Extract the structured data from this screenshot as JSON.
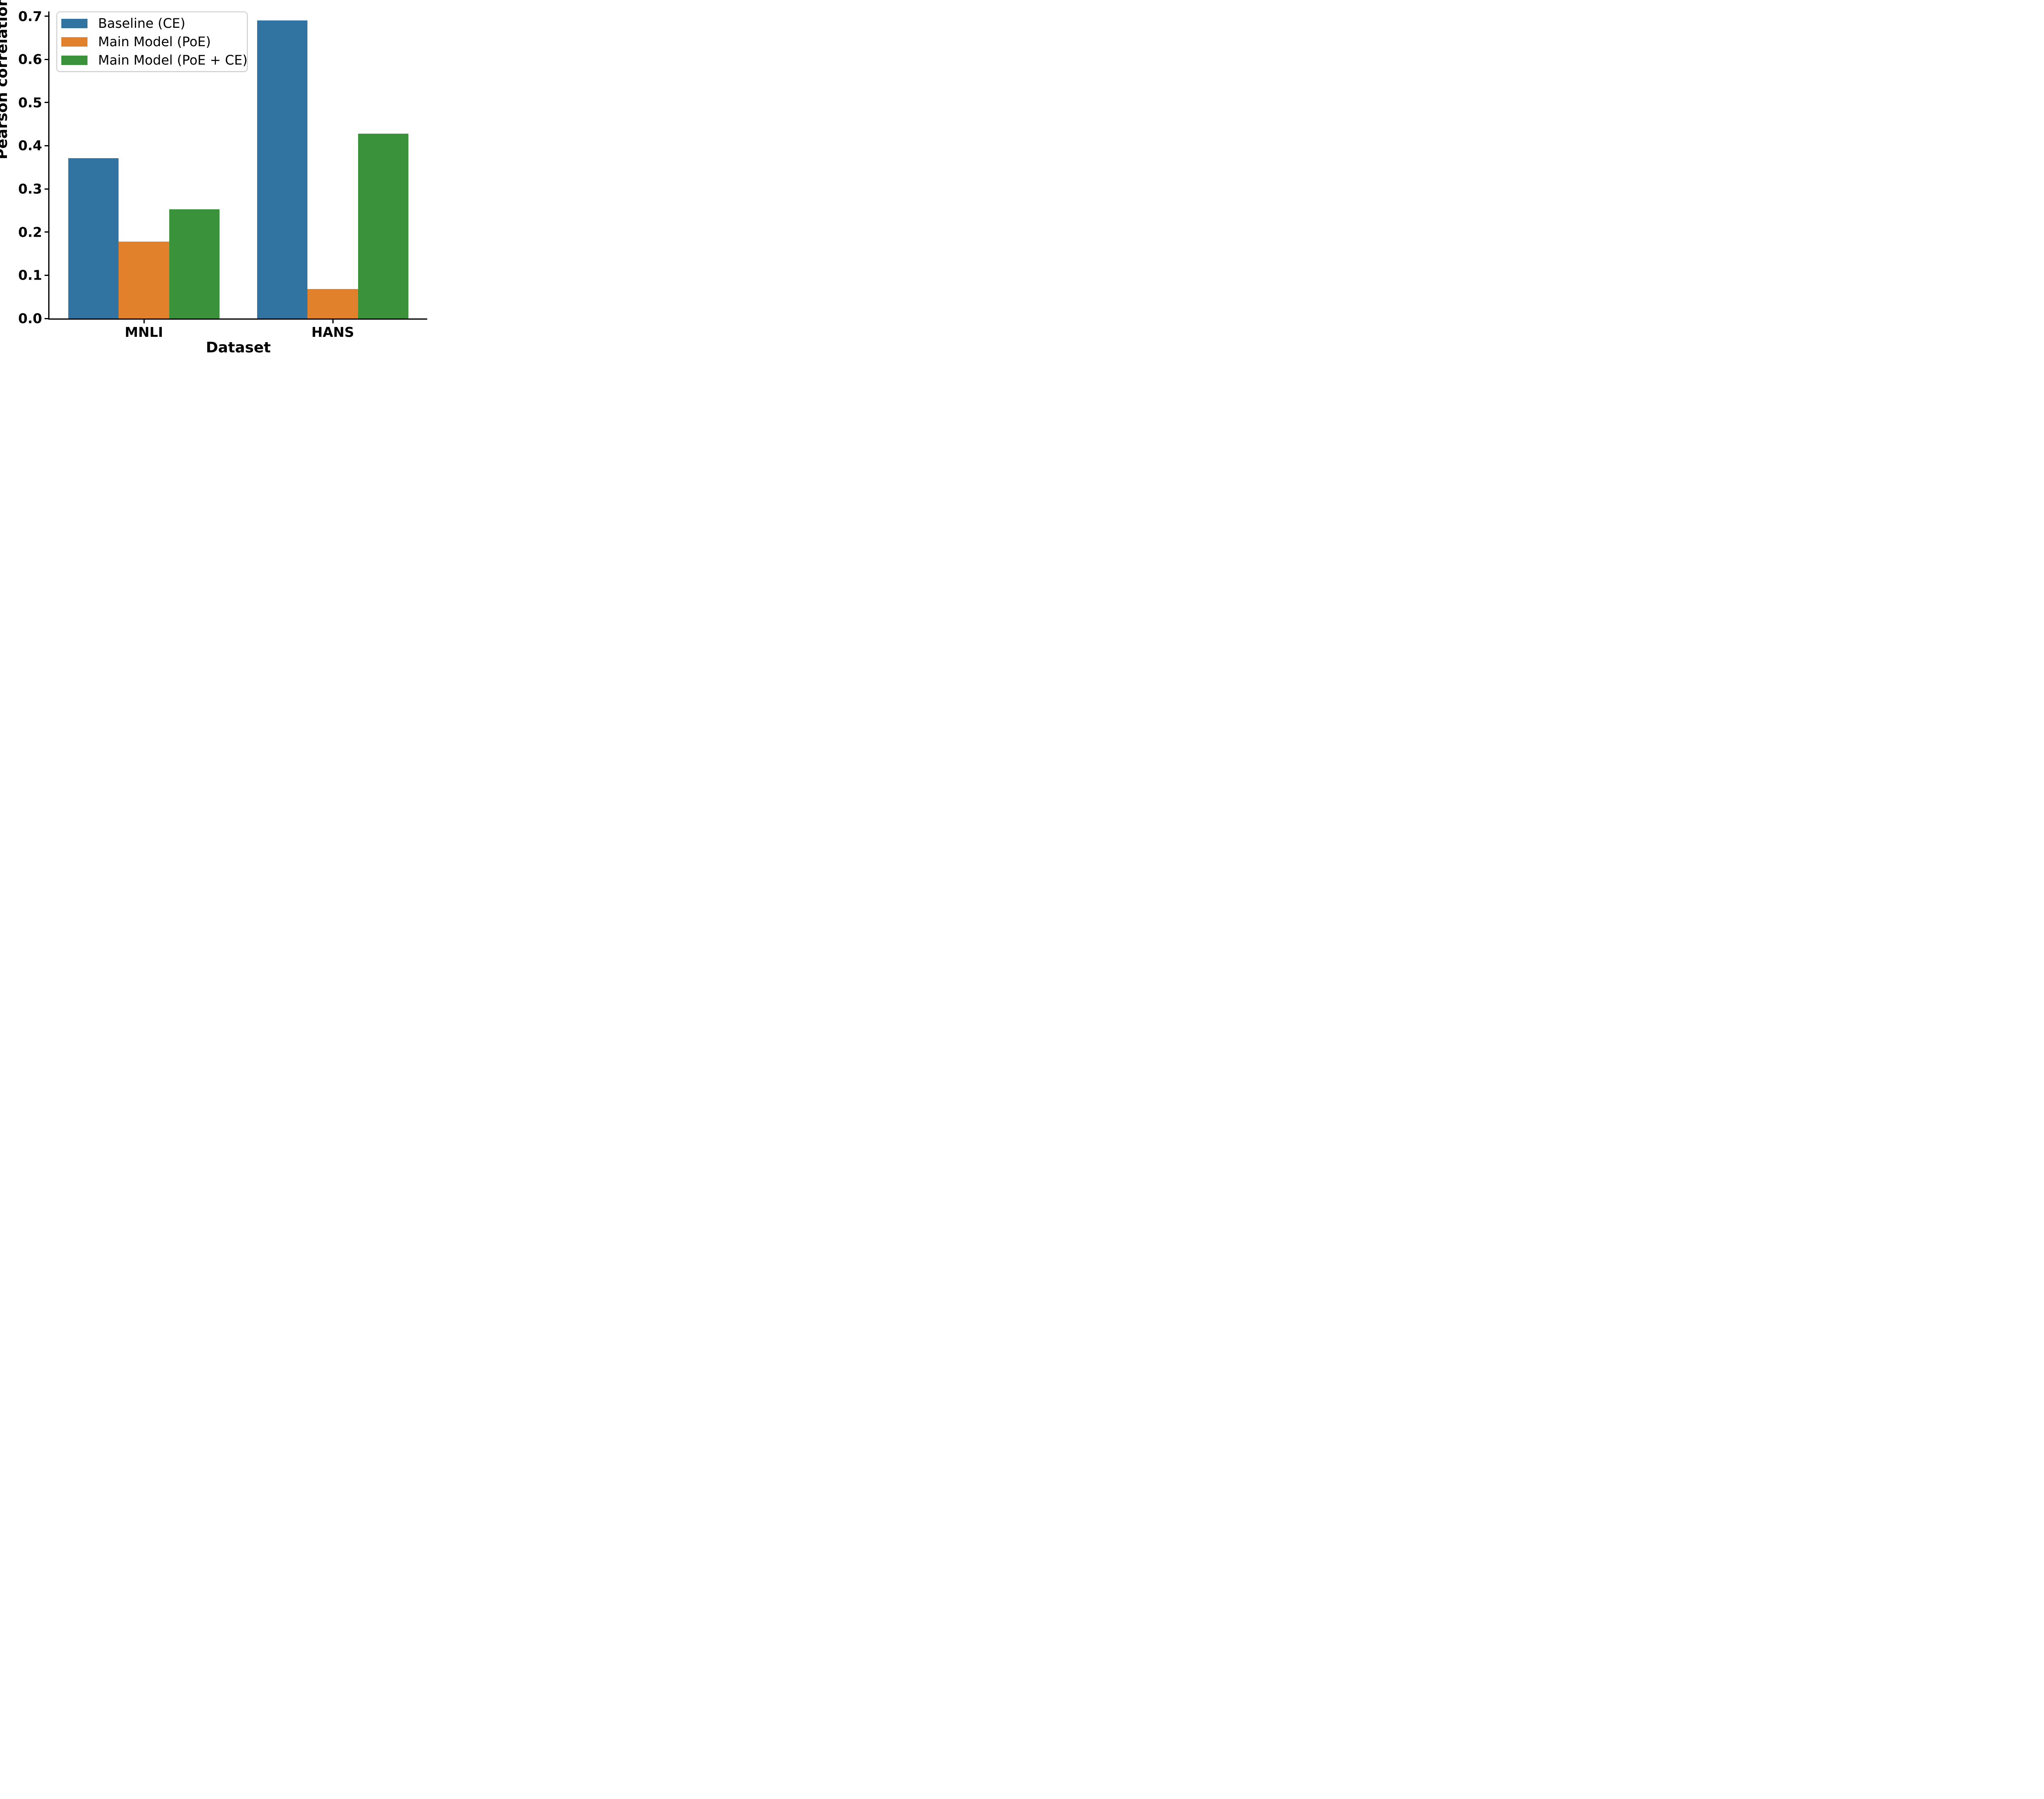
{
  "chart_data": {
    "type": "bar",
    "title": "",
    "categories": [
      "MNLI",
      "HANS"
    ],
    "series": [
      {
        "name": "Baseline (CE)",
        "color": "#3274a1",
        "values": [
          0.371,
          0.69
        ]
      },
      {
        "name": "Main Model (PoE)",
        "color": "#e1812c",
        "values": [
          0.178,
          0.068
        ]
      },
      {
        "name": "Main Model (PoE + CE)",
        "color": "#3a923a",
        "values": [
          0.253,
          0.428
        ]
      }
    ],
    "xlabel": "Dataset",
    "ylabel": "Pearson correlation",
    "ylim": [
      0,
      0.711
    ],
    "yticks": [
      0.0,
      0.1,
      0.2,
      0.3,
      0.4,
      0.5,
      0.6,
      0.7
    ],
    "ytick_labels": [
      "0.0",
      "0.1",
      "0.2",
      "0.3",
      "0.4",
      "0.5",
      "0.6",
      "0.7"
    ],
    "group_width_fraction": 0.8,
    "grid": false,
    "legend_position": "upper-left",
    "spines": [
      "left",
      "bottom"
    ],
    "text_color": "#000000",
    "background_color": "#ffffff"
  }
}
